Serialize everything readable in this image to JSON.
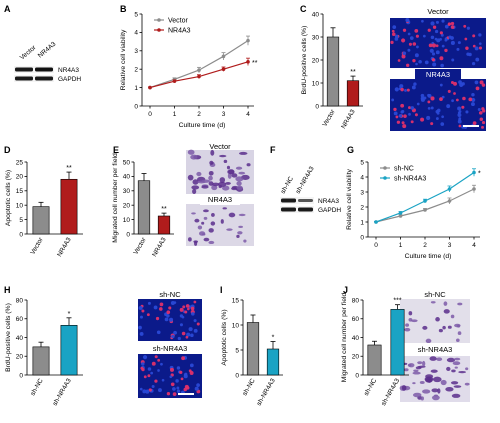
{
  "panels": {
    "A": {
      "letter": "A",
      "lanes": [
        "Vector",
        "NR4A3"
      ],
      "bands": [
        "NR4A3",
        "GAPDH"
      ]
    },
    "F": {
      "letter": "F",
      "lanes": [
        "sh-NC",
        "sh-NR4A3"
      ],
      "bands": [
        "NR4A3",
        "GAPDH"
      ]
    },
    "C_img": {
      "top": "Vector",
      "bottom": "NR4A3"
    },
    "E_img": {
      "top": "Vector",
      "bottom": "NR4A3"
    },
    "H_img": {
      "top": "sh-NC",
      "bottom": "sh-NR4A3"
    },
    "J_img": {
      "top": "sh-NC",
      "bottom": "sh-NR4A3"
    }
  },
  "colors": {
    "control": "#8c8c8c",
    "nr4a3": "#b01c1c",
    "sh": "#1aa3c4",
    "fluor_bg": "#0b1a8a",
    "stain_bg": "#d8d4e4"
  },
  "chart_data": [
    {
      "id": "B",
      "letter": "B",
      "type": "line",
      "x": [
        0,
        1,
        2,
        3,
        4
      ],
      "series": [
        {
          "name": "Vector",
          "values": [
            1.0,
            1.45,
            1.95,
            2.7,
            3.55
          ],
          "err": [
            0.03,
            0.08,
            0.15,
            0.2,
            0.25
          ],
          "color": "#8c8c8c"
        },
        {
          "name": "NR4A3",
          "values": [
            1.0,
            1.35,
            1.6,
            2.0,
            2.4
          ],
          "err": [
            0.03,
            0.07,
            0.1,
            0.12,
            0.2
          ],
          "color": "#b01c1c"
        }
      ],
      "xlabel": "Culture time (d)",
      "ylabel": "Relative cell viability",
      "xlim": [
        0,
        4
      ],
      "ylim": [
        0,
        5
      ],
      "yticks": [
        0,
        1,
        2,
        3,
        4,
        5
      ],
      "annotation": "**",
      "legend": "top-left"
    },
    {
      "id": "C",
      "letter": "C",
      "type": "bar",
      "categories": [
        "Vector",
        "NR4A3"
      ],
      "values": [
        30,
        11
      ],
      "err": [
        4,
        2
      ],
      "colors": [
        "#8c8c8c",
        "#b01c1c"
      ],
      "annotations": [
        "",
        "**"
      ],
      "ylabel": "BrdU-positive cells (%)",
      "ylim": [
        0,
        40
      ],
      "yticks": [
        0,
        10,
        20,
        30,
        40
      ]
    },
    {
      "id": "D",
      "letter": "D",
      "type": "bar",
      "categories": [
        "Vector",
        "NR4A3"
      ],
      "values": [
        9.5,
        19
      ],
      "err": [
        1.5,
        2.5
      ],
      "colors": [
        "#8c8c8c",
        "#b01c1c"
      ],
      "annotations": [
        "",
        "**"
      ],
      "ylabel": "Apoptotic cells (%)",
      "ylim": [
        0,
        25
      ],
      "yticks": [
        0,
        5,
        10,
        15,
        20,
        25
      ]
    },
    {
      "id": "E",
      "letter": "E",
      "type": "bar",
      "categories": [
        "Vector",
        "NR4A3"
      ],
      "values": [
        37,
        12.5
      ],
      "err": [
        5,
        2
      ],
      "colors": [
        "#8c8c8c",
        "#b01c1c"
      ],
      "annotations": [
        "",
        "**"
      ],
      "ylabel": "Migrated cell number per field",
      "ylim": [
        0,
        50
      ],
      "yticks": [
        0,
        10,
        20,
        30,
        40,
        50
      ]
    },
    {
      "id": "G",
      "letter": "G",
      "type": "line",
      "x": [
        0,
        1,
        2,
        3,
        4
      ],
      "series": [
        {
          "name": "sh-NC",
          "values": [
            1.0,
            1.4,
            1.8,
            2.4,
            3.2
          ],
          "err": [
            0.03,
            0.08,
            0.1,
            0.2,
            0.25
          ],
          "color": "#8c8c8c"
        },
        {
          "name": "sh-NR4A3",
          "values": [
            1.0,
            1.6,
            2.4,
            3.2,
            4.3
          ],
          "err": [
            0.03,
            0.1,
            0.12,
            0.2,
            0.25
          ],
          "color": "#1aa3c4"
        }
      ],
      "xlabel": "Culture time (d)",
      "ylabel": "Relative cell viability",
      "xlim": [
        0,
        4
      ],
      "ylim": [
        0,
        5
      ],
      "yticks": [
        0,
        1,
        2,
        3,
        4,
        5
      ],
      "annotation": "*",
      "legend": "top-left"
    },
    {
      "id": "H",
      "letter": "H",
      "type": "bar",
      "categories": [
        "sh-NC",
        "sh-NR4A3"
      ],
      "values": [
        30,
        53
      ],
      "err": [
        5,
        8
      ],
      "colors": [
        "#8c8c8c",
        "#1aa3c4"
      ],
      "annotations": [
        "",
        "*"
      ],
      "ylabel": "BrdU-positive cells (%)",
      "ylim": [
        0,
        80
      ],
      "yticks": [
        0,
        20,
        40,
        60,
        80
      ]
    },
    {
      "id": "I",
      "letter": "I",
      "type": "bar",
      "categories": [
        "sh-NC",
        "sh-NR4A3"
      ],
      "values": [
        10.5,
        5.2
      ],
      "err": [
        1.5,
        1.5
      ],
      "colors": [
        "#8c8c8c",
        "#1aa3c4"
      ],
      "annotations": [
        "",
        "*"
      ],
      "ylabel": "Apoptotic cells (%)",
      "ylim": [
        0,
        15
      ],
      "yticks": [
        0,
        5,
        10,
        15
      ]
    },
    {
      "id": "J",
      "letter": "J",
      "type": "bar",
      "categories": [
        "sh-NC",
        "sh-NR4A3"
      ],
      "values": [
        32,
        70
      ],
      "err": [
        4,
        5
      ],
      "colors": [
        "#8c8c8c",
        "#1aa3c4"
      ],
      "annotations": [
        "",
        "***"
      ],
      "ylabel": "Migrated cell number per field",
      "ylim": [
        0,
        80
      ],
      "yticks": [
        0,
        20,
        40,
        60,
        80
      ]
    }
  ]
}
